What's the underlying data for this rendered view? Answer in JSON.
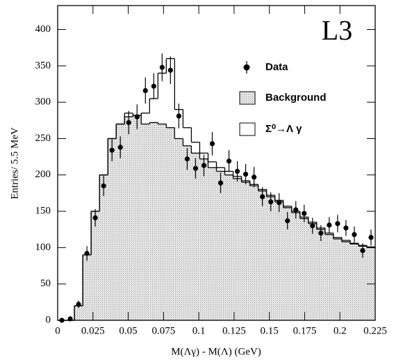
{
  "chart_data": {
    "type": "histogram",
    "annotations": [
      "L3"
    ],
    "xlabel": "M(Λγ) - M(Λ) (GeV)",
    "ylabel": "Entries/ 5.5 MeV",
    "bins": [
      0,
      0.00592,
      0.01184,
      0.01776,
      0.02368,
      0.02961,
      0.03553,
      0.04145,
      0.04737,
      0.05329,
      0.05921,
      0.06513,
      0.07105,
      0.07697,
      0.08289,
      0.08882,
      0.09474,
      0.10066,
      0.10658,
      0.1125,
      0.11842,
      0.12434,
      0.13026,
      0.13618,
      0.14211,
      0.14803,
      0.15395,
      0.15987,
      0.16579,
      0.17171,
      0.17763,
      0.18355,
      0.18947,
      0.19539,
      0.20132,
      0.20724,
      0.21316,
      0.21908,
      0.225
    ],
    "series": [
      {
        "name": "Background",
        "color": "#d9d9d9",
        "stack": true,
        "values": [
          0,
          0,
          20,
          90,
          150,
          200,
          250,
          270,
          280,
          282,
          270,
          272,
          270,
          265,
          250,
          240,
          230,
          222,
          210,
          205,
          200,
          195,
          190,
          185,
          178,
          170,
          163,
          155,
          148,
          140,
          133,
          125,
          118,
          112,
          108,
          105,
          102,
          100
        ]
      },
      {
        "name": "Σ⁰→Λ γ",
        "color": "#ffffff",
        "stack": true,
        "values": [
          0,
          0,
          0,
          0,
          0,
          0,
          0,
          0,
          5,
          0,
          15,
          33,
          70,
          95,
          40,
          25,
          15,
          8,
          8,
          5,
          5,
          3,
          2,
          2,
          2,
          2,
          2,
          2,
          2,
          2,
          2,
          2,
          2,
          2,
          2,
          1,
          1,
          1
        ]
      },
      {
        "name": "Data",
        "color": "#000000",
        "points": true,
        "values": [
          0,
          2,
          22,
          92,
          141,
          185,
          234,
          238,
          272,
          280,
          316,
          322,
          348,
          344,
          281,
          222,
          209,
          213,
          243,
          189,
          219,
          205,
          201,
          197,
          170,
          163,
          162,
          137,
          152,
          147,
          130,
          120,
          131,
          133,
          127,
          118,
          96,
          114
        ],
        "errors": [
          0,
          1,
          5,
          10,
          12,
          14,
          15,
          15,
          16,
          17,
          18,
          18,
          19,
          19,
          17,
          15,
          14,
          15,
          16,
          14,
          15,
          14,
          14,
          14,
          13,
          13,
          13,
          12,
          12,
          12,
          11,
          11,
          11,
          12,
          11,
          11,
          10,
          11
        ]
      }
    ],
    "xlim": [
      0,
      0.225
    ],
    "ylim": [
      0,
      433
    ],
    "xticks": [
      0,
      0.025,
      0.05,
      0.075,
      0.1,
      0.125,
      0.15,
      0.175,
      0.2,
      0.225
    ],
    "yticks": [
      0,
      50,
      100,
      150,
      200,
      250,
      300,
      350,
      400
    ],
    "grid": false
  }
}
